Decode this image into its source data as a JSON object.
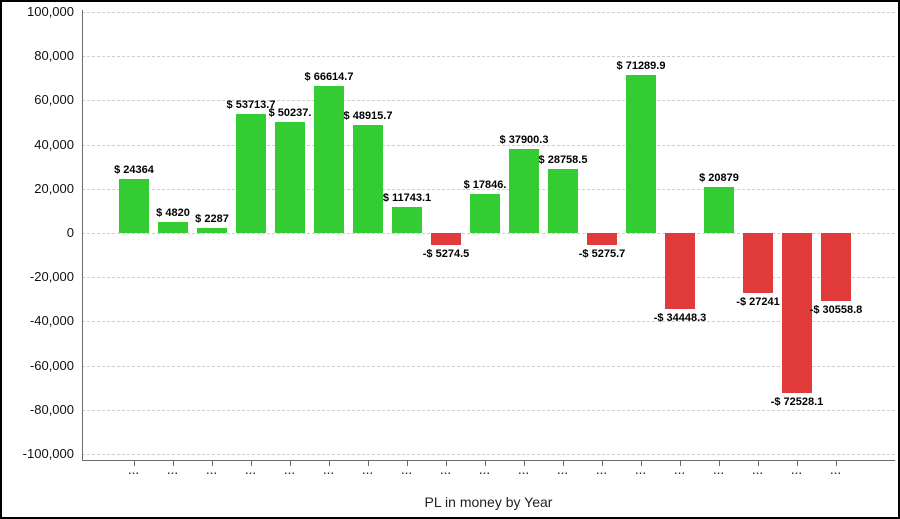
{
  "window": {
    "background": "#ffffff",
    "border_color": "#000000"
  },
  "chart_data": {
    "type": "bar",
    "title": "PL in money by Year",
    "categories": [
      "...",
      "...",
      "...",
      "...",
      "...",
      "...",
      "...",
      "...",
      "...",
      "...",
      "...",
      "...",
      "...",
      "...",
      "...",
      "...",
      "...",
      "...",
      "..."
    ],
    "values": [
      24364,
      4820,
      2287,
      53713.7,
      50237,
      66614.7,
      48915.7,
      11743.1,
      -5274.5,
      17846,
      37900.3,
      28758.5,
      -5275.7,
      71289.9,
      -34448.3,
      20879,
      -27241,
      -72528.1,
      -30558.8
    ],
    "bar_labels": [
      "$ 24364",
      "$ 4820",
      "$ 2287",
      "$ 53713.7",
      "$ 50237.",
      "$ 66614.7",
      "$ 48915.7",
      "$ 11743.1",
      "-$ 5274.5",
      "$ 17846.",
      "$ 37900.3",
      "$ 28758.5",
      "-$ 5275.7",
      "$ 71289.9",
      "-$ 34448.3",
      "$ 20879",
      "-$ 27241",
      "-$ 72528.1",
      "-$ 30558.8"
    ],
    "positive_color": "#33cc33",
    "negative_color": "#e03a3a",
    "ylim": [
      -100000,
      100000
    ],
    "ytick_values": [
      100000,
      80000,
      60000,
      40000,
      20000,
      0,
      -20000,
      -40000,
      -60000,
      -80000,
      -100000
    ],
    "ytick_labels": [
      "100,000",
      "80,000",
      "60,000",
      "40,000",
      "20,000",
      "0",
      "-20,000",
      "-40,000",
      "-60,000",
      "-80,000",
      "-100,000"
    ],
    "grid": true,
    "gridline_color": "#cfcfcf",
    "axis_color": "#6b6b6b",
    "xlabel": "",
    "ylabel": ""
  }
}
